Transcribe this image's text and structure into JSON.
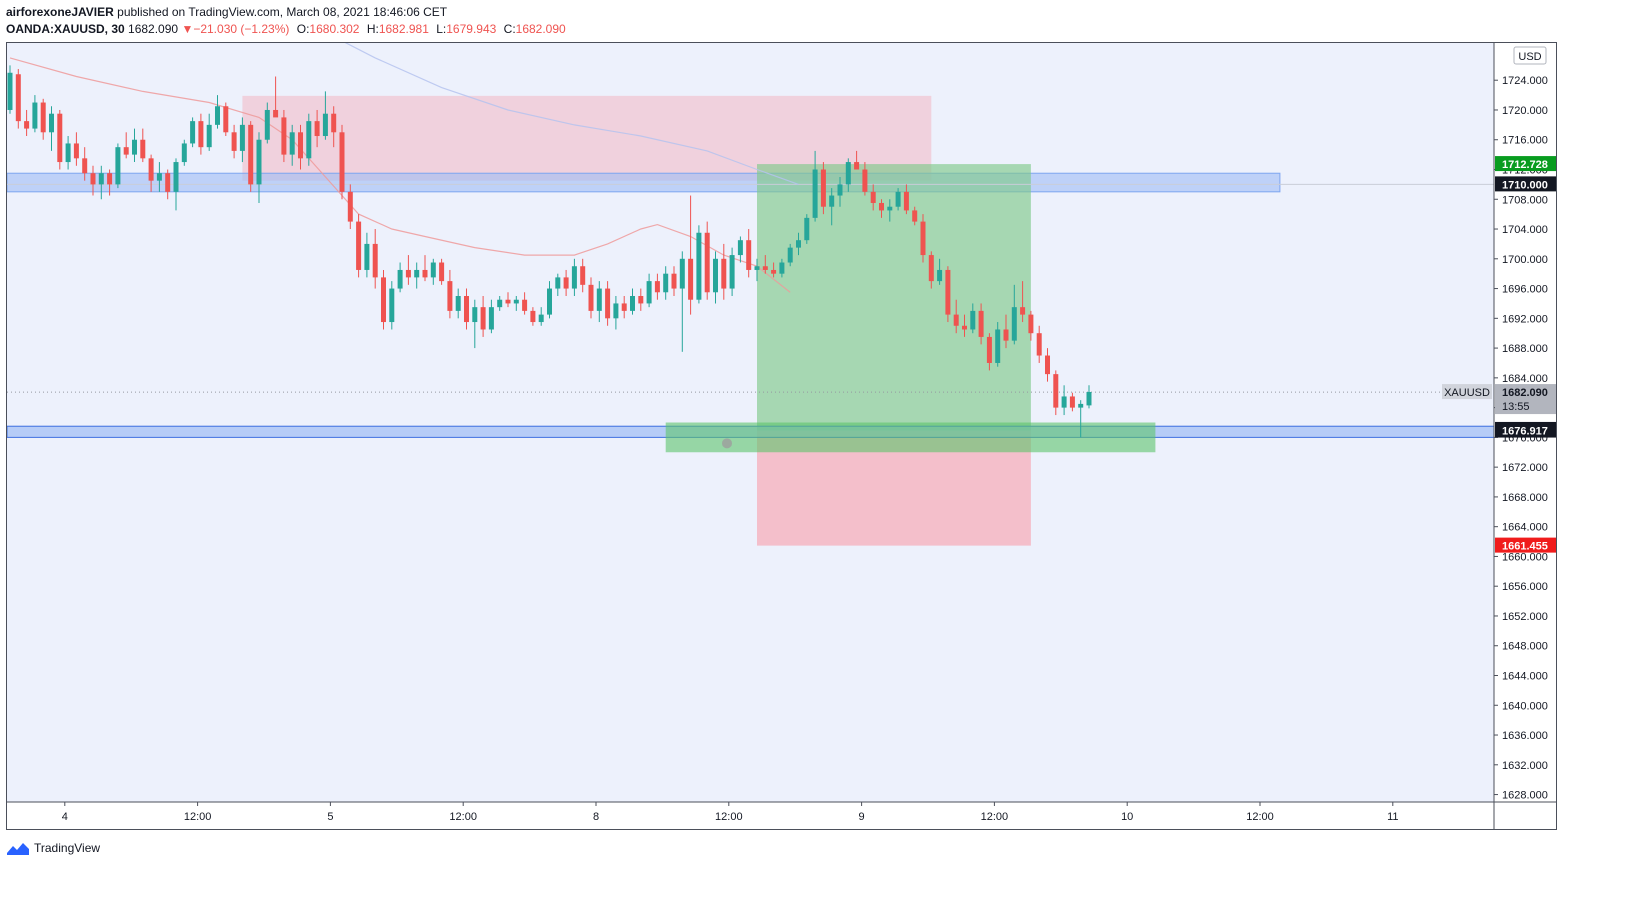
{
  "header": {
    "author": "airforexoneJAVIER",
    "published_text": "published on TradingView.com, March 08, 2021 18:46:06 CET",
    "symbol": "OANDA:XAUUSD, 30",
    "last": "1682.090",
    "change": "−21.030 (−1.23%)",
    "open_label": "O:",
    "open": "1680.302",
    "high_label": "H:",
    "high": "1682.981",
    "low_label": "L:",
    "low": "1679.943",
    "close_label": "C:",
    "close": "1682.090"
  },
  "footer": {
    "brand": "TradingView"
  },
  "colors": {
    "background": "#edf1fc",
    "bull": "#26a69a",
    "bear": "#ef5350",
    "zone_blue": "#9ebcf5",
    "target_green": "#7fc98b",
    "stop_red": "#f4b6c2",
    "supply_pink": "#f0c6d3"
  },
  "chart_data": {
    "type": "candlestick",
    "currency": "USD",
    "symbol_tag": "XAUUSD",
    "y_ticks": [
      "1724.000",
      "1720.000",
      "1716.000",
      "1712.000",
      "1708.000",
      "1704.000",
      "1700.000",
      "1696.000",
      "1692.000",
      "1688.000",
      "1684.000",
      "1680.000",
      "1676.000",
      "1672.000",
      "1668.000",
      "1664.000",
      "1660.000",
      "1656.000",
      "1652.000",
      "1648.000",
      "1644.000",
      "1640.000",
      "1636.000",
      "1632.000",
      "1628.000"
    ],
    "y_tick_values": [
      1724,
      1720,
      1716,
      1712,
      1708,
      1704,
      1700,
      1696,
      1692,
      1688,
      1684,
      1680,
      1676,
      1672,
      1668,
      1664,
      1660,
      1656,
      1652,
      1648,
      1644,
      1640,
      1636,
      1632,
      1628
    ],
    "ylim": [
      1627,
      1729
    ],
    "x_ticks": [
      "4",
      "12:00",
      "5",
      "12:00",
      "8",
      "12:00",
      "9",
      "12:00",
      "10",
      "12:00",
      "11"
    ],
    "x_tick_bars": [
      6,
      22,
      38,
      54,
      70,
      86,
      102,
      118,
      134,
      150,
      166
    ],
    "price_labels": [
      {
        "text": "1712.728",
        "value": 1712.728,
        "style": "green"
      },
      {
        "text": "1710.000",
        "value": 1710.0,
        "style": "dark"
      },
      {
        "text": "1682.090",
        "value": 1682.09,
        "style": "last",
        "countdown": "13:55"
      },
      {
        "text": "1677.000",
        "value": 1677.0,
        "style": "dark"
      },
      {
        "text": "1676.917",
        "value": 1676.917,
        "style": "dark"
      },
      {
        "text": "1661.455",
        "value": 1661.455,
        "style": "red"
      }
    ],
    "zones": {
      "supply": {
        "bar_from": 28,
        "bar_to": 111,
        "top": 1721.9,
        "bottom": 1710.5
      },
      "resistance": {
        "bar_from": 0,
        "bar_to": 153,
        "top": 1711.5,
        "bottom": 1709.0
      },
      "support_blue": {
        "bar_from": 0,
        "bar_to": 179,
        "top": 1677.5,
        "bottom": 1676.0
      },
      "support_green": {
        "bar_from": 79,
        "bar_to": 138,
        "top": 1678.0,
        "bottom": 1674.0
      },
      "position": {
        "bar_from": 90,
        "bar_to": 123,
        "entry": 1676.917,
        "target": 1712.728,
        "stop": 1661.455
      }
    },
    "moving_averages": [
      {
        "color": "#ef9a9a",
        "points": [
          [
            0,
            1727
          ],
          [
            8,
            1724.5
          ],
          [
            16,
            1722.5
          ],
          [
            24,
            1721
          ],
          [
            30,
            1719
          ],
          [
            34,
            1716
          ],
          [
            38,
            1711
          ],
          [
            42,
            1706
          ],
          [
            46,
            1704
          ],
          [
            50,
            1703
          ],
          [
            56,
            1701.5
          ],
          [
            62,
            1700.5
          ],
          [
            68,
            1700.5
          ],
          [
            72,
            1702
          ],
          [
            76,
            1704
          ],
          [
            78,
            1704.6
          ],
          [
            82,
            1703
          ],
          [
            86,
            1700.5
          ],
          [
            90,
            1699
          ],
          [
            94,
            1695.5
          ]
        ]
      },
      {
        "color": "#b5c3ee",
        "points": [
          [
            37,
            1731
          ],
          [
            44,
            1727
          ],
          [
            52,
            1723
          ],
          [
            60,
            1720
          ],
          [
            68,
            1718
          ],
          [
            76,
            1716.5
          ],
          [
            84,
            1714.5
          ],
          [
            90,
            1712
          ],
          [
            95,
            1710
          ]
        ]
      }
    ],
    "candles": [
      {
        "o": 1720.0,
        "h": 1726.0,
        "l": 1719.5,
        "c": 1725.0
      },
      {
        "o": 1724.8,
        "h": 1725.5,
        "l": 1717.5,
        "c": 1718.5
      },
      {
        "o": 1718.5,
        "h": 1720.0,
        "l": 1716.5,
        "c": 1717.5
      },
      {
        "o": 1717.5,
        "h": 1722.0,
        "l": 1717.0,
        "c": 1721.0
      },
      {
        "o": 1721.0,
        "h": 1721.5,
        "l": 1716.0,
        "c": 1717.0
      },
      {
        "o": 1717.0,
        "h": 1720.5,
        "l": 1714.5,
        "c": 1719.5
      },
      {
        "o": 1719.5,
        "h": 1720.0,
        "l": 1712.0,
        "c": 1713.0
      },
      {
        "o": 1713.0,
        "h": 1716.5,
        "l": 1712.0,
        "c": 1715.5
      },
      {
        "o": 1715.5,
        "h": 1717.0,
        "l": 1712.5,
        "c": 1713.5
      },
      {
        "o": 1713.5,
        "h": 1715.0,
        "l": 1710.5,
        "c": 1711.5
      },
      {
        "o": 1711.5,
        "h": 1712.5,
        "l": 1708.5,
        "c": 1710.0
      },
      {
        "o": 1710.0,
        "h": 1712.5,
        "l": 1708.0,
        "c": 1711.5
      },
      {
        "o": 1711.5,
        "h": 1712.0,
        "l": 1708.5,
        "c": 1710.0
      },
      {
        "o": 1710.0,
        "h": 1715.5,
        "l": 1709.5,
        "c": 1715.0
      },
      {
        "o": 1715.0,
        "h": 1717.0,
        "l": 1713.5,
        "c": 1714.0
      },
      {
        "o": 1714.0,
        "h": 1717.5,
        "l": 1713.0,
        "c": 1716.0
      },
      {
        "o": 1716.0,
        "h": 1717.5,
        "l": 1713.0,
        "c": 1713.5
      },
      {
        "o": 1713.5,
        "h": 1714.0,
        "l": 1709.0,
        "c": 1710.5
      },
      {
        "o": 1710.5,
        "h": 1713.0,
        "l": 1709.0,
        "c": 1711.5
      },
      {
        "o": 1711.5,
        "h": 1712.0,
        "l": 1708.0,
        "c": 1709.0
      },
      {
        "o": 1709.0,
        "h": 1713.5,
        "l": 1706.5,
        "c": 1713.0
      },
      {
        "o": 1713.0,
        "h": 1716.0,
        "l": 1712.5,
        "c": 1715.5
      },
      {
        "o": 1715.5,
        "h": 1719.0,
        "l": 1715.0,
        "c": 1718.5
      },
      {
        "o": 1718.5,
        "h": 1719.5,
        "l": 1714.0,
        "c": 1715.0
      },
      {
        "o": 1715.0,
        "h": 1719.5,
        "l": 1714.5,
        "c": 1718.0
      },
      {
        "o": 1718.0,
        "h": 1722.0,
        "l": 1717.5,
        "c": 1720.5
      },
      {
        "o": 1720.5,
        "h": 1721.0,
        "l": 1716.5,
        "c": 1717.0
      },
      {
        "o": 1717.0,
        "h": 1718.0,
        "l": 1713.5,
        "c": 1714.5
      },
      {
        "o": 1714.5,
        "h": 1719.0,
        "l": 1713.0,
        "c": 1718.0
      },
      {
        "o": 1718.0,
        "h": 1718.5,
        "l": 1709.0,
        "c": 1710.0
      },
      {
        "o": 1710.0,
        "h": 1717.0,
        "l": 1707.5,
        "c": 1716.0
      },
      {
        "o": 1716.0,
        "h": 1721.0,
        "l": 1715.5,
        "c": 1720.0
      },
      {
        "o": 1720.0,
        "h": 1724.5,
        "l": 1719.5,
        "c": 1719.0
      },
      {
        "o": 1719.0,
        "h": 1720.0,
        "l": 1713.0,
        "c": 1714.0
      },
      {
        "o": 1714.0,
        "h": 1718.0,
        "l": 1712.5,
        "c": 1717.0
      },
      {
        "o": 1717.0,
        "h": 1718.0,
        "l": 1712.0,
        "c": 1713.5
      },
      {
        "o": 1713.5,
        "h": 1719.5,
        "l": 1712.5,
        "c": 1718.5
      },
      {
        "o": 1718.5,
        "h": 1720.0,
        "l": 1715.0,
        "c": 1716.5
      },
      {
        "o": 1716.5,
        "h": 1722.5,
        "l": 1716.0,
        "c": 1719.5
      },
      {
        "o": 1719.5,
        "h": 1720.5,
        "l": 1715.0,
        "c": 1717.0
      },
      {
        "o": 1717.0,
        "h": 1718.0,
        "l": 1708.0,
        "c": 1709.0
      },
      {
        "o": 1709.0,
        "h": 1710.0,
        "l": 1704.0,
        "c": 1705.0
      },
      {
        "o": 1705.0,
        "h": 1706.0,
        "l": 1697.5,
        "c": 1698.5
      },
      {
        "o": 1698.5,
        "h": 1703.5,
        "l": 1697.5,
        "c": 1702.0
      },
      {
        "o": 1702.0,
        "h": 1704.0,
        "l": 1696.0,
        "c": 1697.5
      },
      {
        "o": 1697.5,
        "h": 1698.5,
        "l": 1690.5,
        "c": 1691.5
      },
      {
        "o": 1691.5,
        "h": 1697.0,
        "l": 1690.5,
        "c": 1696.0
      },
      {
        "o": 1696.0,
        "h": 1699.5,
        "l": 1695.5,
        "c": 1698.5
      },
      {
        "o": 1698.5,
        "h": 1700.5,
        "l": 1696.5,
        "c": 1697.5
      },
      {
        "o": 1697.5,
        "h": 1699.5,
        "l": 1696.0,
        "c": 1698.5
      },
      {
        "o": 1698.5,
        "h": 1700.5,
        "l": 1697.0,
        "c": 1697.5
      },
      {
        "o": 1697.5,
        "h": 1700.0,
        "l": 1696.5,
        "c": 1699.5
      },
      {
        "o": 1699.5,
        "h": 1700.0,
        "l": 1696.5,
        "c": 1697.0
      },
      {
        "o": 1697.0,
        "h": 1698.5,
        "l": 1692.0,
        "c": 1693.0
      },
      {
        "o": 1693.0,
        "h": 1696.0,
        "l": 1692.0,
        "c": 1695.0
      },
      {
        "o": 1695.0,
        "h": 1696.0,
        "l": 1690.5,
        "c": 1691.5
      },
      {
        "o": 1691.5,
        "h": 1694.5,
        "l": 1688.0,
        "c": 1693.5
      },
      {
        "o": 1693.5,
        "h": 1695.0,
        "l": 1689.5,
        "c": 1690.5
      },
      {
        "o": 1690.5,
        "h": 1694.5,
        "l": 1690.0,
        "c": 1693.5
      },
      {
        "o": 1693.5,
        "h": 1695.0,
        "l": 1693.0,
        "c": 1694.5
      },
      {
        "o": 1694.5,
        "h": 1695.5,
        "l": 1693.5,
        "c": 1694.0
      },
      {
        "o": 1694.0,
        "h": 1695.0,
        "l": 1693.0,
        "c": 1694.5
      },
      {
        "o": 1694.5,
        "h": 1695.5,
        "l": 1692.5,
        "c": 1693.0
      },
      {
        "o": 1693.0,
        "h": 1693.5,
        "l": 1691.0,
        "c": 1691.5
      },
      {
        "o": 1691.5,
        "h": 1693.5,
        "l": 1691.0,
        "c": 1692.5
      },
      {
        "o": 1692.5,
        "h": 1697.0,
        "l": 1692.0,
        "c": 1696.0
      },
      {
        "o": 1696.0,
        "h": 1698.0,
        "l": 1695.0,
        "c": 1697.5
      },
      {
        "o": 1697.5,
        "h": 1698.5,
        "l": 1695.0,
        "c": 1696.0
      },
      {
        "o": 1696.0,
        "h": 1700.0,
        "l": 1695.0,
        "c": 1699.0
      },
      {
        "o": 1699.0,
        "h": 1700.0,
        "l": 1695.5,
        "c": 1696.5
      },
      {
        "o": 1696.5,
        "h": 1697.5,
        "l": 1692.0,
        "c": 1693.0
      },
      {
        "o": 1693.0,
        "h": 1697.0,
        "l": 1691.5,
        "c": 1696.0
      },
      {
        "o": 1696.0,
        "h": 1697.0,
        "l": 1691.0,
        "c": 1692.0
      },
      {
        "o": 1692.0,
        "h": 1695.0,
        "l": 1690.5,
        "c": 1694.0
      },
      {
        "o": 1694.0,
        "h": 1695.0,
        "l": 1692.0,
        "c": 1693.0
      },
      {
        "o": 1693.0,
        "h": 1696.0,
        "l": 1692.5,
        "c": 1695.0
      },
      {
        "o": 1695.0,
        "h": 1696.0,
        "l": 1693.0,
        "c": 1694.0
      },
      {
        "o": 1694.0,
        "h": 1698.0,
        "l": 1693.5,
        "c": 1697.0
      },
      {
        "o": 1697.0,
        "h": 1698.0,
        "l": 1694.5,
        "c": 1695.5
      },
      {
        "o": 1695.5,
        "h": 1699.0,
        "l": 1694.5,
        "c": 1698.0
      },
      {
        "o": 1698.0,
        "h": 1699.0,
        "l": 1695.0,
        "c": 1696.0
      },
      {
        "o": 1696.0,
        "h": 1701.0,
        "l": 1687.5,
        "c": 1700.0
      },
      {
        "o": 1700.0,
        "h": 1708.5,
        "l": 1692.5,
        "c": 1694.5
      },
      {
        "o": 1694.5,
        "h": 1704.5,
        "l": 1694.0,
        "c": 1703.5
      },
      {
        "o": 1703.5,
        "h": 1705.0,
        "l": 1694.5,
        "c": 1695.5
      },
      {
        "o": 1695.5,
        "h": 1701.0,
        "l": 1694.0,
        "c": 1700.0
      },
      {
        "o": 1700.0,
        "h": 1702.0,
        "l": 1694.5,
        "c": 1696.0
      },
      {
        "o": 1696.0,
        "h": 1701.5,
        "l": 1695.0,
        "c": 1700.5
      },
      {
        "o": 1700.5,
        "h": 1703.0,
        "l": 1699.5,
        "c": 1702.5
      },
      {
        "o": 1702.5,
        "h": 1704.0,
        "l": 1697.5,
        "c": 1698.5
      },
      {
        "o": 1698.5,
        "h": 1700.0,
        "l": 1697.0,
        "c": 1699.0
      },
      {
        "o": 1699.0,
        "h": 1700.5,
        "l": 1698.0,
        "c": 1698.5
      },
      {
        "o": 1698.5,
        "h": 1699.5,
        "l": 1697.5,
        "c": 1698.0
      },
      {
        "o": 1698.0,
        "h": 1700.0,
        "l": 1697.5,
        "c": 1699.5
      },
      {
        "o": 1699.5,
        "h": 1702.0,
        "l": 1699.0,
        "c": 1701.5
      },
      {
        "o": 1701.5,
        "h": 1703.5,
        "l": 1700.5,
        "c": 1702.5
      },
      {
        "o": 1702.5,
        "h": 1706.0,
        "l": 1702.0,
        "c": 1705.5
      },
      {
        "o": 1705.5,
        "h": 1714.5,
        "l": 1705.0,
        "c": 1712.0
      },
      {
        "o": 1712.0,
        "h": 1713.0,
        "l": 1706.0,
        "c": 1707.0
      },
      {
        "o": 1707.0,
        "h": 1709.5,
        "l": 1704.5,
        "c": 1708.5
      },
      {
        "o": 1708.5,
        "h": 1711.0,
        "l": 1707.0,
        "c": 1710.0
      },
      {
        "o": 1710.0,
        "h": 1713.5,
        "l": 1709.0,
        "c": 1713.0
      },
      {
        "o": 1713.0,
        "h": 1714.5,
        "l": 1712.0,
        "c": 1712.0
      },
      {
        "o": 1712.0,
        "h": 1713.0,
        "l": 1708.5,
        "c": 1709.0
      },
      {
        "o": 1709.0,
        "h": 1710.0,
        "l": 1706.5,
        "c": 1707.5
      },
      {
        "o": 1707.5,
        "h": 1708.0,
        "l": 1705.5,
        "c": 1706.5
      },
      {
        "o": 1706.5,
        "h": 1708.0,
        "l": 1705.0,
        "c": 1707.0
      },
      {
        "o": 1707.0,
        "h": 1709.5,
        "l": 1706.5,
        "c": 1709.0
      },
      {
        "o": 1709.0,
        "h": 1710.0,
        "l": 1706.0,
        "c": 1706.5
      },
      {
        "o": 1706.5,
        "h": 1707.0,
        "l": 1704.5,
        "c": 1705.0
      },
      {
        "o": 1705.0,
        "h": 1706.0,
        "l": 1699.5,
        "c": 1700.5
      },
      {
        "o": 1700.5,
        "h": 1701.0,
        "l": 1696.0,
        "c": 1697.0
      },
      {
        "o": 1697.0,
        "h": 1700.0,
        "l": 1696.5,
        "c": 1698.5
      },
      {
        "o": 1698.5,
        "h": 1699.0,
        "l": 1691.5,
        "c": 1692.5
      },
      {
        "o": 1692.5,
        "h": 1694.5,
        "l": 1690.0,
        "c": 1691.0
      },
      {
        "o": 1691.0,
        "h": 1692.5,
        "l": 1689.5,
        "c": 1690.5
      },
      {
        "o": 1690.5,
        "h": 1694.0,
        "l": 1690.0,
        "c": 1693.0
      },
      {
        "o": 1693.0,
        "h": 1694.0,
        "l": 1688.5,
        "c": 1689.5
      },
      {
        "o": 1689.5,
        "h": 1690.0,
        "l": 1685.0,
        "c": 1686.0
      },
      {
        "o": 1686.0,
        "h": 1691.5,
        "l": 1685.5,
        "c": 1690.5
      },
      {
        "o": 1690.5,
        "h": 1692.5,
        "l": 1688.0,
        "c": 1689.0
      },
      {
        "o": 1689.0,
        "h": 1696.5,
        "l": 1688.5,
        "c": 1693.5
      },
      {
        "o": 1693.5,
        "h": 1697.0,
        "l": 1691.5,
        "c": 1692.5
      },
      {
        "o": 1692.5,
        "h": 1693.0,
        "l": 1689.0,
        "c": 1690.0
      },
      {
        "o": 1690.0,
        "h": 1691.0,
        "l": 1686.0,
        "c": 1687.0
      },
      {
        "o": 1687.0,
        "h": 1688.0,
        "l": 1683.5,
        "c": 1684.5
      },
      {
        "o": 1684.5,
        "h": 1685.0,
        "l": 1679.0,
        "c": 1680.0
      },
      {
        "o": 1680.0,
        "h": 1683.0,
        "l": 1679.0,
        "c": 1681.5
      },
      {
        "o": 1681.5,
        "h": 1682.0,
        "l": 1679.5,
        "c": 1680.0
      },
      {
        "o": 1680.0,
        "h": 1681.0,
        "l": 1676.0,
        "c": 1680.5
      },
      {
        "o": 1680.3,
        "h": 1683.0,
        "l": 1679.9,
        "c": 1682.1
      }
    ]
  }
}
